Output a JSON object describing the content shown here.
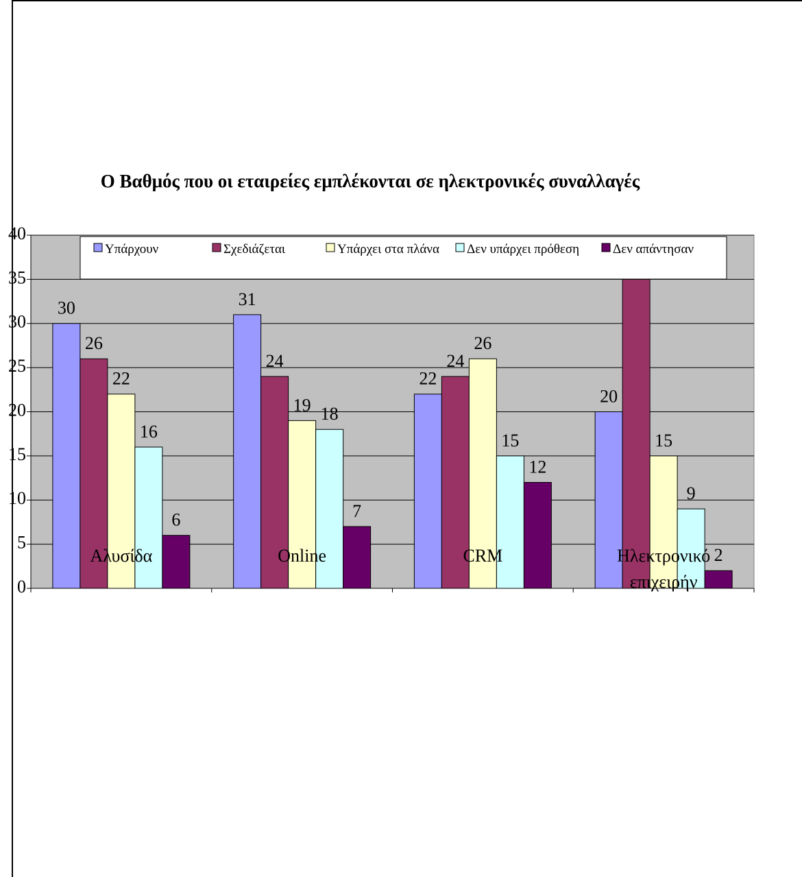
{
  "chart_data": {
    "type": "bar",
    "title": "Ο Βαθμός που οι εταιρείες εμπλέκονται σε ηλεκτρονικές συναλλαγές",
    "categories": [
      "Αλυσίδα",
      "Online",
      "CRM",
      "Ηλεκτρονικό επιχειρήν"
    ],
    "series": [
      {
        "name": "Υπάρχουν",
        "color": "#9999ff",
        "values": [
          30,
          31,
          22,
          20
        ]
      },
      {
        "name": "Σχεδιάζεται",
        "color": "#993366",
        "values": [
          26,
          24,
          24,
          35
        ]
      },
      {
        "name": "Υπάρχει στα πλάνα",
        "color": "#ffffcc",
        "values": [
          22,
          19,
          26,
          15
        ]
      },
      {
        "name": "Δεν υπάρχει πρόθεση",
        "color": "#ccffff",
        "values": [
          16,
          18,
          15,
          9
        ]
      },
      {
        "name": "Δεν απάντησαν",
        "color": "#660066",
        "values": [
          6,
          7,
          12,
          2
        ]
      }
    ],
    "ylim": [
      0,
      40
    ],
    "yticks": [
      0,
      5,
      10,
      15,
      20,
      25,
      30,
      35,
      40
    ],
    "grid": true,
    "legend": "top"
  }
}
